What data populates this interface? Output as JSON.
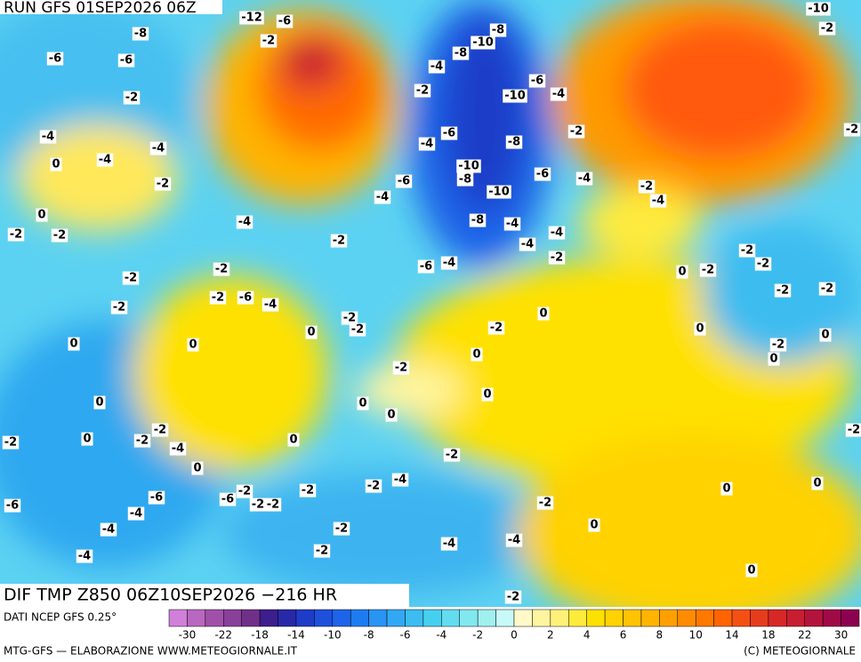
{
  "header": {
    "run": "RUN GFS 01SEP2026 06Z",
    "field": "DIF TMP Z850 06Z10SEP2026 −216 HR"
  },
  "footer": {
    "source": "DATI NCEP GFS 0.25°",
    "credit": "MTG-GFS — ELABORAZIONE WWW.METEOGIORNALE.IT",
    "copyright": "(C) METEOGIORNALE"
  },
  "colorbar": {
    "ticks": [
      "-30",
      "-22",
      "-18",
      "-14",
      "-10",
      "-8",
      "-6",
      "-4",
      "-2",
      "0",
      "2",
      "4",
      "6",
      "8",
      "10",
      "14",
      "18",
      "22",
      "30"
    ],
    "colors": [
      "#d080d8",
      "#b868c0",
      "#a050a8",
      "#884098",
      "#703088",
      "#3c1e8c",
      "#2828a8",
      "#1e3cc8",
      "#1e50dc",
      "#1e64e8",
      "#1e7cf0",
      "#2894f4",
      "#32a8f4",
      "#3cbcf0",
      "#46d0f0",
      "#64dcf0",
      "#82e8f0",
      "#a0f0f0",
      "#c8f8f8",
      "#fffac8",
      "#fff5a0",
      "#fff078",
      "#ffeb3c",
      "#ffe100",
      "#ffd200",
      "#ffc300",
      "#ffb400",
      "#ffa000",
      "#ff8c00",
      "#ff7800",
      "#ff6400",
      "#f55014",
      "#e63c1e",
      "#d72828",
      "#c81e32",
      "#b4143c",
      "#a00a46",
      "#8c0050"
    ]
  },
  "map": {
    "labels": [
      "-12",
      "-6",
      "-8",
      "-2",
      "-10",
      "-8",
      "-6",
      "-6",
      "-8",
      "-4",
      "-2",
      "-2",
      "-10",
      "-6",
      "-4",
      "-4",
      "-4",
      "-4",
      "-6",
      "-4",
      "-8",
      "-2",
      "0",
      "-2",
      "-10",
      "-8",
      "-6",
      "-6",
      "-4",
      "-10",
      "-2",
      "-4",
      "-4",
      "0",
      "-2",
      "-2",
      "-4",
      "-8",
      "-4",
      "-4",
      "-2",
      "-4",
      "-2",
      "-2",
      "-6",
      "-4",
      "-2",
      "-2",
      "0",
      "-2",
      "-2",
      "-2",
      "-6",
      "-4",
      "-2",
      "0",
      "-2",
      "-2",
      "-2",
      "-2",
      "0",
      "-2",
      "0",
      "0",
      "0",
      "-2",
      "0",
      "0",
      "0",
      "-2",
      "0",
      "0",
      "0",
      "0",
      "-2",
      "0",
      "-2",
      "-2",
      "-4",
      "0",
      "-2",
      "0",
      "-2",
      "-2",
      "-2",
      "-4",
      "0",
      "0",
      "-6",
      "-6",
      "-6",
      "-2",
      "-4",
      "-2",
      "-2",
      "-2",
      "-4",
      "0",
      "-2",
      "-4",
      "-4",
      "-4",
      "-2",
      "0",
      "-2",
      "-10",
      "-2",
      "-2"
    ]
  }
}
